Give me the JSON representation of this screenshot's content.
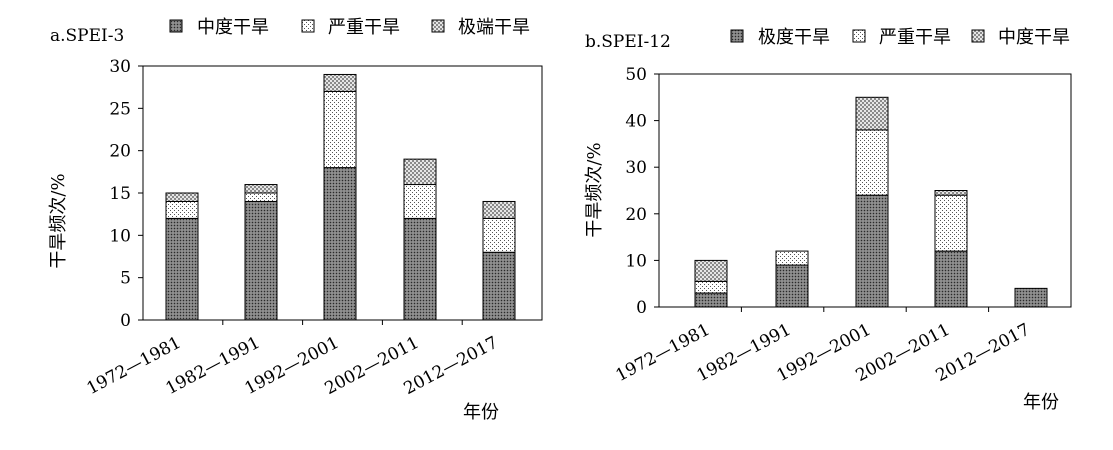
{
  "chart_data": [
    {
      "type": "bar",
      "stacked": true,
      "title": "a.SPEI-3",
      "xlabel": "年份",
      "ylabel": "干旱频次/%",
      "ylim": [
        0,
        30
      ],
      "yticks": [
        0,
        5,
        10,
        15,
        20,
        25,
        30
      ],
      "grid": false,
      "legend_position": "top",
      "categories": [
        "1972—1981",
        "1982—1991",
        "1992—2001",
        "2002—2011",
        "2012—2017"
      ],
      "series": [
        {
          "name": "中度干旱",
          "pattern": "dark-dots",
          "values": [
            12,
            14,
            18,
            12,
            8
          ]
        },
        {
          "name": "严重干旱",
          "pattern": "light-dots",
          "values": [
            2,
            1,
            9,
            4,
            4
          ]
        },
        {
          "name": "极端干旱",
          "pattern": "checker",
          "values": [
            1,
            1,
            2,
            3,
            2
          ]
        }
      ]
    },
    {
      "type": "bar",
      "stacked": true,
      "title": "b.SPEI-12",
      "xlabel": "年份",
      "ylabel": "干旱频次/%",
      "ylim": [
        0,
        50
      ],
      "yticks": [
        0,
        10,
        20,
        30,
        40,
        50
      ],
      "grid": false,
      "legend_position": "top",
      "categories": [
        "1972—1981",
        "1982—1991",
        "1992—2001",
        "2002—2011",
        "2012—2017"
      ],
      "series": [
        {
          "name": "极度干旱",
          "pattern": "dark-dots",
          "values": [
            3,
            9,
            24,
            12,
            4
          ]
        },
        {
          "name": "严重干旱",
          "pattern": "light-dots",
          "values": [
            2.5,
            3,
            14,
            12,
            0
          ]
        },
        {
          "name": "中度干旱",
          "pattern": "checker",
          "values": [
            4.5,
            0,
            7,
            1,
            0
          ]
        }
      ]
    }
  ]
}
